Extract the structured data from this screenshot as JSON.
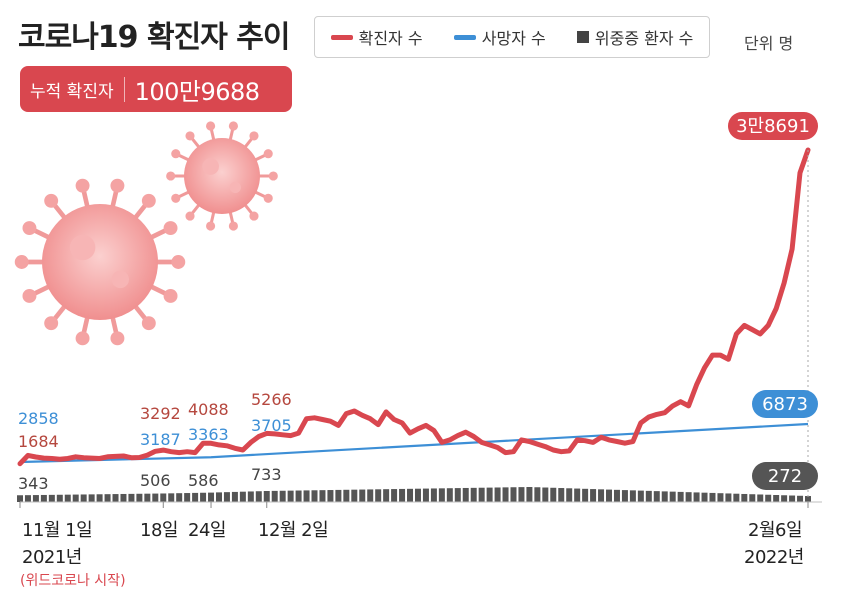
{
  "title": "코로나19 확진자 추이",
  "unit": "단위 명",
  "cumulative": {
    "label": "누적 확진자",
    "value": "100만9688"
  },
  "legend": [
    {
      "label": "확진자 수",
      "color": "#d9474f",
      "shape": "line"
    },
    {
      "label": "사망자 수",
      "color": "#3d8fd6",
      "shape": "line"
    },
    {
      "label": "위중증 환자 수",
      "color": "#444444",
      "shape": "box"
    }
  ],
  "colors": {
    "cases": "#d9474f",
    "deaths": "#3d8fd6",
    "severe": "#444444",
    "virus": "#f4a3a3"
  },
  "x_labels": {
    "nov1": "11월 1일",
    "year2021": "2021년",
    "d18": "18일",
    "d24": "24일",
    "dec2": "12월 2일",
    "feb6": "2월6일",
    "year2022": "2022년",
    "source": "(위드코로나 시작)"
  },
  "chart_data": {
    "type": "line",
    "title": "코로나19 확진자 추이",
    "unit": "명",
    "x_range": [
      "2021-11-01",
      "2022-02-06"
    ],
    "series": [
      {
        "name": "확진자 수",
        "color": "#d9474f",
        "points": [
          [
            0,
            1684
          ],
          [
            1,
            2667
          ],
          [
            2,
            2482
          ],
          [
            3,
            2344
          ],
          [
            4,
            2300
          ],
          [
            5,
            2200
          ],
          [
            6,
            2300
          ],
          [
            7,
            2500
          ],
          [
            8,
            2400
          ],
          [
            9,
            2350
          ],
          [
            10,
            2300
          ],
          [
            11,
            2500
          ],
          [
            12,
            2550
          ],
          [
            13,
            2600
          ],
          [
            14,
            2400
          ],
          [
            15,
            2419
          ],
          [
            16,
            2700
          ],
          [
            17,
            3150
          ],
          [
            18,
            3292
          ],
          [
            19,
            3100
          ],
          [
            20,
            3000
          ],
          [
            21,
            3100
          ],
          [
            22,
            3000
          ],
          [
            23,
            4100
          ],
          [
            24,
            4088
          ],
          [
            25,
            3900
          ],
          [
            26,
            3800
          ],
          [
            27,
            3500
          ],
          [
            28,
            3300
          ],
          [
            29,
            4200
          ],
          [
            30,
            4900
          ],
          [
            31,
            5266
          ],
          [
            32,
            5200
          ],
          [
            33,
            5100
          ],
          [
            34,
            5000
          ],
          [
            35,
            5300
          ],
          [
            36,
            7000
          ],
          [
            37,
            7100
          ],
          [
            38,
            6900
          ],
          [
            39,
            6700
          ],
          [
            40,
            6200
          ],
          [
            41,
            7600
          ],
          [
            42,
            7900
          ],
          [
            43,
            7400
          ],
          [
            44,
            7000
          ],
          [
            45,
            6300
          ],
          [
            46,
            7800
          ],
          [
            47,
            6900
          ],
          [
            48,
            6500
          ],
          [
            49,
            5300
          ],
          [
            50,
            5800
          ],
          [
            51,
            6200
          ],
          [
            52,
            5600
          ],
          [
            53,
            4200
          ],
          [
            54,
            4500
          ],
          [
            55,
            5000
          ],
          [
            56,
            5400
          ],
          [
            57,
            4900
          ],
          [
            58,
            4200
          ],
          [
            59,
            3900
          ],
          [
            60,
            3600
          ],
          [
            61,
            3000
          ],
          [
            62,
            3100
          ],
          [
            63,
            4500
          ],
          [
            64,
            4300
          ],
          [
            65,
            4000
          ],
          [
            66,
            3700
          ],
          [
            67,
            3300
          ],
          [
            68,
            3100
          ],
          [
            69,
            3200
          ],
          [
            70,
            4500
          ],
          [
            71,
            4400
          ],
          [
            72,
            4200
          ],
          [
            73,
            4800
          ],
          [
            74,
            4500
          ],
          [
            75,
            4300
          ],
          [
            76,
            4100
          ],
          [
            77,
            4300
          ],
          [
            78,
            6500
          ],
          [
            79,
            7200
          ],
          [
            80,
            7500
          ],
          [
            81,
            7700
          ],
          [
            82,
            8500
          ],
          [
            83,
            9000
          ],
          [
            84,
            8500
          ],
          [
            85,
            11000
          ],
          [
            86,
            13000
          ],
          [
            87,
            14500
          ],
          [
            88,
            14500
          ],
          [
            89,
            14000
          ],
          [
            90,
            17000
          ],
          [
            91,
            18000
          ],
          [
            92,
            17500
          ],
          [
            93,
            17000
          ],
          [
            94,
            18000
          ],
          [
            95,
            20000
          ],
          [
            96,
            23000
          ],
          [
            97,
            27000
          ],
          [
            98,
            36000
          ],
          [
            99,
            38691
          ]
        ]
      },
      {
        "name": "사망자 수",
        "color": "#3d8fd6",
        "points": [
          [
            0,
            2858
          ],
          [
            24,
            3363
          ],
          [
            99,
            6873
          ]
        ]
      },
      {
        "name": "위중증 환자 수",
        "color": "#444444",
        "points": [
          [
            0,
            343
          ],
          [
            18,
            506
          ],
          [
            24,
            586
          ],
          [
            31,
            733
          ],
          [
            64,
            1100
          ],
          [
            99,
            272
          ]
        ]
      }
    ],
    "annotations": [
      {
        "day": 0,
        "cases": "1684",
        "deaths": "2858",
        "severe": "343"
      },
      {
        "day": 18,
        "cases": "3292",
        "deaths": "3187",
        "severe": "506"
      },
      {
        "day": 24,
        "cases": "4088",
        "deaths": "3363",
        "severe": "586"
      },
      {
        "day": 31,
        "cases": "5266",
        "deaths": "3705",
        "severe": "733"
      }
    ],
    "end_labels": {
      "cases": "3만8691",
      "deaths": "6873",
      "severe": "272"
    },
    "ylim": [
      0,
      40000
    ],
    "grid": false
  }
}
